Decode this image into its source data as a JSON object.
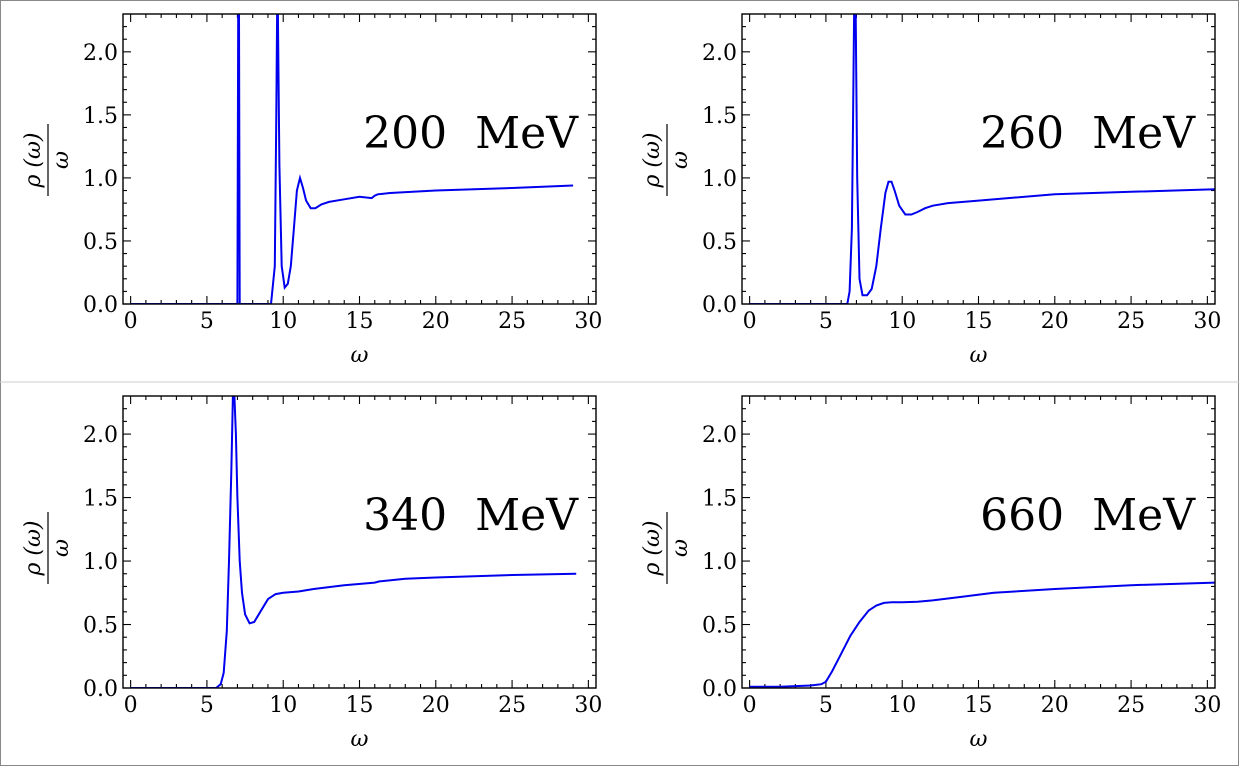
{
  "chart_data": [
    {
      "type": "line",
      "annotation": "200  MeV",
      "xlabel": "ω",
      "ylabel": {
        "numerator": "ρ (ω)",
        "denominator": "ω"
      },
      "xlim": [
        -0.5,
        30.5
      ],
      "ylim": [
        0,
        2.3
      ],
      "xticks": [
        "0",
        "5",
        "10",
        "15",
        "20",
        "25",
        "30"
      ],
      "yticks": [
        "0.0",
        "0.5",
        "1.0",
        "1.5",
        "2.0"
      ],
      "series": [
        {
          "name": "rho/omega",
          "color": "#0000ee",
          "x": [
            0,
            7.0,
            7.05,
            7.1,
            7.15,
            7.2,
            9.2,
            9.45,
            9.55,
            9.6,
            9.65,
            9.75,
            9.9,
            10.1,
            10.3,
            10.5,
            10.7,
            10.9,
            11.1,
            11.3,
            11.5,
            11.8,
            12.1,
            12.5,
            13.0,
            14.0,
            15.0,
            15.8,
            16.0,
            16.2,
            17.0,
            20.0,
            25.0,
            29.0
          ],
          "y": [
            0,
            0,
            2.3,
            2.3,
            0,
            0,
            0,
            0.3,
            1.5,
            2.3,
            2.3,
            1.1,
            0.3,
            0.13,
            0.16,
            0.3,
            0.6,
            0.9,
            1.0,
            0.92,
            0.82,
            0.76,
            0.76,
            0.79,
            0.81,
            0.83,
            0.85,
            0.84,
            0.86,
            0.87,
            0.88,
            0.9,
            0.92,
            0.94
          ]
        }
      ]
    },
    {
      "type": "line",
      "annotation": "260  MeV",
      "xlabel": "ω",
      "ylabel": {
        "numerator": "ρ (ω)",
        "denominator": "ω"
      },
      "xlim": [
        -0.5,
        30.5
      ],
      "ylim": [
        0,
        2.3
      ],
      "xticks": [
        "0",
        "5",
        "10",
        "15",
        "20",
        "25",
        "30"
      ],
      "yticks": [
        "0.0",
        "0.5",
        "1.0",
        "1.5",
        "2.0"
      ],
      "series": [
        {
          "name": "rho/omega",
          "color": "#0000ee",
          "x": [
            0,
            6.4,
            6.55,
            6.7,
            6.78,
            6.85,
            6.95,
            7.05,
            7.2,
            7.4,
            7.7,
            8.0,
            8.3,
            8.6,
            8.9,
            9.1,
            9.3,
            9.5,
            9.8,
            10.2,
            10.6,
            11.0,
            11.5,
            12.0,
            13.0,
            15.0,
            20.0,
            25.0,
            30.5
          ],
          "y": [
            0,
            0,
            0.1,
            0.6,
            1.5,
            2.3,
            2.3,
            1.0,
            0.2,
            0.07,
            0.07,
            0.12,
            0.3,
            0.6,
            0.88,
            0.97,
            0.97,
            0.9,
            0.78,
            0.71,
            0.71,
            0.73,
            0.76,
            0.78,
            0.8,
            0.82,
            0.87,
            0.89,
            0.91
          ]
        }
      ]
    },
    {
      "type": "line",
      "annotation": "340  MeV",
      "xlabel": "ω",
      "ylabel": {
        "numerator": "ρ (ω)",
        "denominator": "ω"
      },
      "xlim": [
        -0.5,
        30.5
      ],
      "ylim": [
        0,
        2.3
      ],
      "xticks": [
        "0",
        "5",
        "10",
        "15",
        "20",
        "25",
        "30"
      ],
      "yticks": [
        "0.0",
        "0.5",
        "1.0",
        "1.5",
        "2.0"
      ],
      "series": [
        {
          "name": "rho/omega",
          "color": "#0000ee",
          "x": [
            0,
            5.6,
            5.9,
            6.1,
            6.3,
            6.45,
            6.6,
            6.7,
            6.8,
            6.9,
            7.0,
            7.15,
            7.3,
            7.5,
            7.8,
            8.1,
            8.5,
            9.0,
            9.5,
            10.0,
            11.0,
            12.0,
            14.0,
            16.0,
            16.3,
            18.0,
            20.0,
            25.0,
            29.2
          ],
          "y": [
            0,
            0,
            0.03,
            0.12,
            0.45,
            1.0,
            1.7,
            2.3,
            2.3,
            2.0,
            1.5,
            1.0,
            0.75,
            0.58,
            0.51,
            0.52,
            0.6,
            0.7,
            0.74,
            0.75,
            0.76,
            0.78,
            0.81,
            0.83,
            0.84,
            0.86,
            0.87,
            0.89,
            0.9
          ]
        }
      ]
    },
    {
      "type": "line",
      "annotation": "660  MeV",
      "xlabel": "ω",
      "ylabel": {
        "numerator": "ρ (ω)",
        "denominator": "ω"
      },
      "xlim": [
        -0.5,
        30.5
      ],
      "ylim": [
        0,
        2.3
      ],
      "xticks": [
        "0",
        "5",
        "10",
        "15",
        "20",
        "25",
        "30"
      ],
      "yticks": [
        "0.0",
        "0.5",
        "1.0",
        "1.5",
        "2.0"
      ],
      "series": [
        {
          "name": "rho/omega",
          "color": "#0000ee",
          "x": [
            0,
            2.0,
            4.0,
            4.7,
            5.0,
            5.4,
            6.0,
            6.6,
            7.2,
            7.8,
            8.3,
            8.8,
            9.3,
            10.0,
            11.0,
            12.0,
            14.0,
            16.0,
            20.0,
            25.0,
            30.5
          ],
          "y": [
            0.01,
            0.01,
            0.02,
            0.03,
            0.05,
            0.13,
            0.27,
            0.41,
            0.52,
            0.61,
            0.65,
            0.67,
            0.675,
            0.675,
            0.68,
            0.69,
            0.72,
            0.75,
            0.78,
            0.81,
            0.83
          ]
        }
      ]
    }
  ]
}
